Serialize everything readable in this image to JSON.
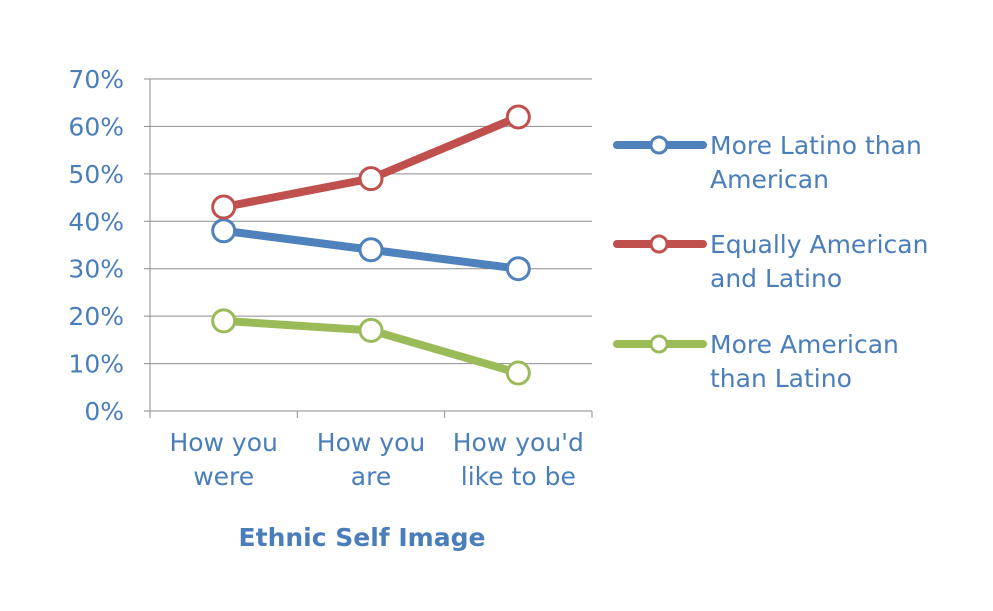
{
  "chart_data": {
    "type": "line",
    "title": "",
    "xlabel": "Ethnic Self Image",
    "ylabel": "",
    "ylim": [
      0,
      70
    ],
    "y_ticks": [
      "0%",
      "10%",
      "20%",
      "30%",
      "40%",
      "50%",
      "60%",
      "70%"
    ],
    "categories": [
      [
        "How you",
        "were"
      ],
      [
        "How you",
        "are"
      ],
      [
        "How you'd",
        "like to be"
      ]
    ],
    "grid": true,
    "legend_position": "right",
    "series": [
      {
        "name": "More Latino than American",
        "legend_lines": [
          "More Latino than",
          "American"
        ],
        "color": "#4f81bd",
        "values": [
          38,
          34,
          30
        ]
      },
      {
        "name": "Equally American and Latino",
        "legend_lines": [
          "Equally American",
          "and Latino"
        ],
        "color": "#c0504d",
        "values": [
          43,
          49,
          62
        ]
      },
      {
        "name": "More American than Latino",
        "legend_lines": [
          "More American",
          "than Latino"
        ],
        "color": "#9bbb59",
        "values": [
          19,
          17,
          8
        ]
      }
    ]
  }
}
